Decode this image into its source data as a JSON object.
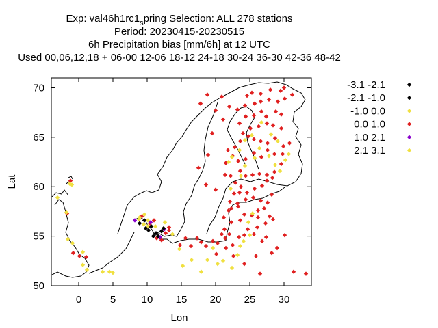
{
  "chart_data": {
    "type": "scatter",
    "title": {
      "line1_a": "Exp: val46h1rc1",
      "line1_sub": "s",
      "line1_b": "pring   Selection: ALL    278 stations",
      "line2": "Period: 20230415-20230515",
      "line3": "6h Precipitation bias [mm/6h] at  12 UTC",
      "line4": "Used  00,06,12,18  + 06-00 12-06 18-12 24-18 30-24 36-30 42-36 48-42"
    },
    "xlabel": "Lon",
    "ylabel": "Lat",
    "xlim": [
      -4,
      34
    ],
    "ylim": [
      50,
      71
    ],
    "xticks": [
      0,
      5,
      10,
      15,
      20,
      25,
      30
    ],
    "yticks": [
      50,
      55,
      60,
      65,
      70
    ],
    "legend_position": "right",
    "series": [
      {
        "name": "-3.1 -2.1",
        "color": "#000000",
        "points": [
          [
            10.2,
            55.6
          ],
          [
            11.6,
            55.0
          ]
        ]
      },
      {
        "name": "-2.1 -1.0",
        "color": "#000000",
        "points": [
          [
            8.9,
            56.3
          ],
          [
            9.8,
            55.8
          ],
          [
            10.6,
            56.0
          ],
          [
            11.3,
            55.3
          ],
          [
            12.1,
            55.5
          ],
          [
            10.9,
            55.0
          ],
          [
            9.6,
            56.6
          ],
          [
            12.4,
            55.8
          ]
        ]
      },
      {
        "name": "-1.0 0.0",
        "color": "#f0e040",
        "points": [
          [
            -3.1,
            58.9
          ],
          [
            -1.3,
            60.3
          ],
          [
            -1.8,
            57.4
          ],
          [
            -1.6,
            54.7
          ],
          [
            -0.9,
            54.3
          ],
          [
            0.6,
            53.4
          ],
          [
            0.6,
            52.1
          ],
          [
            1.2,
            51.6
          ],
          [
            3.5,
            51.4
          ],
          [
            4.5,
            51.4
          ],
          [
            5.0,
            51.3
          ],
          [
            9.6,
            57.2
          ],
          [
            8.8,
            56.7
          ],
          [
            9.5,
            56.2
          ],
          [
            10.1,
            56.6
          ],
          [
            11.2,
            56.0
          ],
          [
            12.6,
            56.4
          ],
          [
            13.7,
            55.2
          ],
          [
            14.7,
            53.7
          ],
          [
            15.2,
            52.0
          ],
          [
            16.5,
            52.6
          ],
          [
            17.9,
            51.4
          ],
          [
            18.8,
            52.6
          ],
          [
            19.6,
            53.8
          ],
          [
            20.3,
            52.2
          ],
          [
            21.1,
            52.5
          ],
          [
            22.4,
            51.8
          ],
          [
            23.2,
            53.1
          ],
          [
            23.6,
            54.0
          ],
          [
            24.1,
            54.5
          ],
          [
            25.0,
            55.1
          ],
          [
            24.8,
            56.4
          ],
          [
            25.4,
            57.3
          ],
          [
            22.2,
            59.8
          ],
          [
            23.7,
            61.1
          ],
          [
            24.3,
            62.1
          ],
          [
            25.7,
            62.9
          ],
          [
            26.4,
            63.9
          ],
          [
            27.8,
            63.1
          ],
          [
            28.7,
            62.2
          ],
          [
            29.4,
            61.6
          ],
          [
            30.2,
            62.7
          ],
          [
            30.7,
            63.3
          ],
          [
            29.1,
            64.6
          ],
          [
            28.1,
            65.3
          ],
          [
            26.7,
            66.5
          ],
          [
            25.3,
            65.2
          ],
          [
            24.3,
            64.7
          ],
          [
            23.5,
            63.7
          ],
          [
            22.4,
            63.0
          ],
          [
            21.9,
            62.5
          ]
        ]
      },
      {
        "name": "0.0 1.0",
        "color": "#e02020",
        "points": [
          [
            -1.2,
            60.6
          ],
          [
            -1.7,
            57.3
          ],
          [
            -0.8,
            53.3
          ],
          [
            0.1,
            53.0
          ],
          [
            1.1,
            52.9
          ],
          [
            9.2,
            57.0
          ],
          [
            10.4,
            56.3
          ],
          [
            11.0,
            56.6
          ],
          [
            12.7,
            55.3
          ],
          [
            13.2,
            55.9
          ],
          [
            12.1,
            54.6
          ],
          [
            11.4,
            54.8
          ],
          [
            13.2,
            55.6
          ],
          [
            14.8,
            54.1
          ],
          [
            15.6,
            54.8
          ],
          [
            16.4,
            54.0
          ],
          [
            17.3,
            54.8
          ],
          [
            17.9,
            54.4
          ],
          [
            18.6,
            54.0
          ],
          [
            19.6,
            54.5
          ],
          [
            20.3,
            54.3
          ],
          [
            21.4,
            54.8
          ],
          [
            22.5,
            54.1
          ],
          [
            23.4,
            54.9
          ],
          [
            24.2,
            55.1
          ],
          [
            25.6,
            55.2
          ],
          [
            26.1,
            55.9
          ],
          [
            27.3,
            56.3
          ],
          [
            27.9,
            57.0
          ],
          [
            28.4,
            56.7
          ],
          [
            21.2,
            56.9
          ],
          [
            22.3,
            56.4
          ],
          [
            23.6,
            56.6
          ],
          [
            24.2,
            57.2
          ],
          [
            25.3,
            57.1
          ],
          [
            26.2,
            57.6
          ],
          [
            27.1,
            57.8
          ],
          [
            22.3,
            57.8
          ],
          [
            23.2,
            58.3
          ],
          [
            24.4,
            58.7
          ],
          [
            25.5,
            58.9
          ],
          [
            26.6,
            58.6
          ],
          [
            27.6,
            58.4
          ],
          [
            28.2,
            59.2
          ],
          [
            22.1,
            58.5
          ],
          [
            23.5,
            59.4
          ],
          [
            24.6,
            59.4
          ],
          [
            25.7,
            59.8
          ],
          [
            26.8,
            60.1
          ],
          [
            27.5,
            60.6
          ],
          [
            28.3,
            60.9
          ],
          [
            22.9,
            60.4
          ],
          [
            23.7,
            60.0
          ],
          [
            21.4,
            61.2
          ],
          [
            22.2,
            61.1
          ],
          [
            23.6,
            61.6
          ],
          [
            24.4,
            61.1
          ],
          [
            25.4,
            61.2
          ],
          [
            26.4,
            61.3
          ],
          [
            27.5,
            61.2
          ],
          [
            28.6,
            61.5
          ],
          [
            29.6,
            62.3
          ],
          [
            21.5,
            62.4
          ],
          [
            22.5,
            63.1
          ],
          [
            23.3,
            62.6
          ],
          [
            24.4,
            62.8
          ],
          [
            25.6,
            63.4
          ],
          [
            26.7,
            63.0
          ],
          [
            27.6,
            63.7
          ],
          [
            28.6,
            63.3
          ],
          [
            29.8,
            63.3
          ],
          [
            21.8,
            63.7
          ],
          [
            22.8,
            64.0
          ],
          [
            23.6,
            64.6
          ],
          [
            24.8,
            65.1
          ],
          [
            25.6,
            64.8
          ],
          [
            26.6,
            64.6
          ],
          [
            27.6,
            64.4
          ],
          [
            28.7,
            64.9
          ],
          [
            29.9,
            64.1
          ],
          [
            30.8,
            64.4
          ],
          [
            24.0,
            65.4
          ],
          [
            25.1,
            65.9
          ],
          [
            26.3,
            66.1
          ],
          [
            27.5,
            66.4
          ],
          [
            28.4,
            66.2
          ],
          [
            29.6,
            65.9
          ],
          [
            23.5,
            66.4
          ],
          [
            24.4,
            67.1
          ],
          [
            25.6,
            67.2
          ],
          [
            26.7,
            67.6
          ],
          [
            27.4,
            67.1
          ],
          [
            28.8,
            67.6
          ],
          [
            29.6,
            67.3
          ],
          [
            23.2,
            67.8
          ],
          [
            24.3,
            68.2
          ],
          [
            25.7,
            68.4
          ],
          [
            26.6,
            68.6
          ],
          [
            27.8,
            68.8
          ],
          [
            29.1,
            68.6
          ],
          [
            30.1,
            68.9
          ],
          [
            24.6,
            69.2
          ],
          [
            25.3,
            69.5
          ],
          [
            26.6,
            69.4
          ],
          [
            28.0,
            69.8
          ],
          [
            29.5,
            69.7
          ],
          [
            30.0,
            70.0
          ],
          [
            31.2,
            69.3
          ],
          [
            20.9,
            69.1
          ],
          [
            22.0,
            68.1
          ],
          [
            21.1,
            66.8
          ],
          [
            20.0,
            67.7
          ],
          [
            18.8,
            69.3
          ],
          [
            17.8,
            68.4
          ],
          [
            19.5,
            65.4
          ],
          [
            18.9,
            63.2
          ],
          [
            17.5,
            61.9
          ],
          [
            18.6,
            60.2
          ],
          [
            20.0,
            59.7
          ],
          [
            22.7,
            59.3
          ],
          [
            23.3,
            58.0
          ],
          [
            21.9,
            57.6
          ],
          [
            21.3,
            55.7
          ],
          [
            20.9,
            55.2
          ],
          [
            21.5,
            53.8
          ],
          [
            22.6,
            53.0
          ],
          [
            24.2,
            52.2
          ],
          [
            25.9,
            53.0
          ],
          [
            26.8,
            54.5
          ],
          [
            27.4,
            54.9
          ],
          [
            28.2,
            53.3
          ],
          [
            26.5,
            51.2
          ],
          [
            31.4,
            51.4
          ],
          [
            33.2,
            51.2
          ],
          [
            29.0,
            53.8
          ],
          [
            30.1,
            55.1
          ],
          [
            26.2,
            56.9
          ],
          [
            24.7,
            55.7
          ],
          [
            22.0,
            55.2
          ],
          [
            20.1,
            53.2
          ]
        ]
      },
      {
        "name": "1.0 2.1",
        "color": "#8a00cc",
        "points": [
          [
            8.2,
            56.6
          ],
          [
            12.5,
            55.7
          ],
          [
            11.9,
            54.9
          ],
          [
            10.5,
            56.4
          ]
        ]
      },
      {
        "name": "2.1 3.1",
        "color": "#f0e040",
        "points": [
          [
            -1.0,
            60.2
          ],
          [
            8.9,
            56.9
          ],
          [
            10.1,
            56.0
          ]
        ]
      }
    ]
  },
  "coastline_label_note": ""
}
